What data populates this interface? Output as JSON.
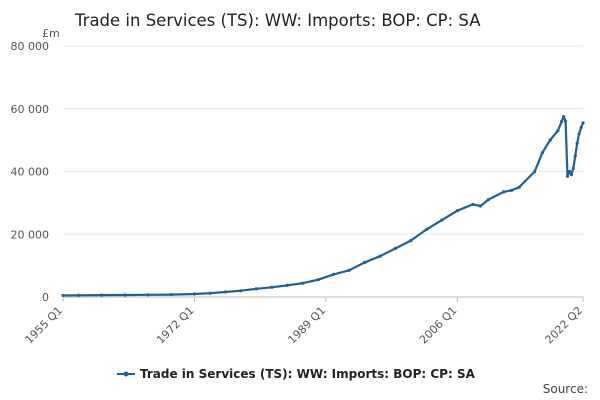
{
  "chart_data": {
    "type": "line",
    "title": "Trade in Services (TS): WW: Imports: BOP: CP: SA",
    "unit_label": "£m",
    "y_ticks": [
      0,
      20000,
      40000,
      60000,
      80000
    ],
    "y_tick_labels": [
      "0",
      "20 000",
      "40 000",
      "60 000",
      "80 000"
    ],
    "ylim": [
      0,
      80000
    ],
    "x_tick_labels": [
      "1955 Q1",
      "1972 Q1",
      "1989 Q1",
      "2006 Q1",
      "2022 Q2"
    ],
    "x_tick_positions": [
      1955.0,
      1972.0,
      1989.0,
      2006.0,
      2022.25
    ],
    "xlim": [
      1955.0,
      2022.25
    ],
    "grid": true,
    "legend": "bottom",
    "series": [
      {
        "name": "Trade in Services (TS): WW: Imports: BOP: CP: SA",
        "color": "#206095",
        "x": [
          1955.0,
          1957.0,
          1960.0,
          1963.0,
          1966.0,
          1969.0,
          1972.0,
          1974.0,
          1976.0,
          1978.0,
          1980.0,
          1982.0,
          1984.0,
          1986.0,
          1988.0,
          1990.0,
          1992.0,
          1994.0,
          1996.0,
          1998.0,
          2000.0,
          2002.0,
          2004.0,
          2006.0,
          2008.0,
          2009.0,
          2010.0,
          2012.0,
          2013.0,
          2014.0,
          2016.0,
          2017.0,
          2018.0,
          2019.0,
          2019.5,
          2019.75,
          2020.0,
          2020.25,
          2020.5,
          2020.75,
          2021.0,
          2021.25,
          2021.5,
          2021.75,
          2022.0,
          2022.25
        ],
        "y": [
          500,
          550,
          600,
          650,
          700,
          780,
          950,
          1200,
          1600,
          2000,
          2600,
          3100,
          3700,
          4400,
          5500,
          7200,
          8500,
          11000,
          13000,
          15500,
          18000,
          21500,
          24500,
          27500,
          29500,
          29000,
          31000,
          33500,
          34000,
          35000,
          40000,
          46000,
          50000,
          53000,
          56000,
          57500,
          56000,
          38500,
          40000,
          39000,
          41000,
          45000,
          49000,
          52000,
          54000,
          55500
        ]
      }
    ]
  },
  "footer": {
    "source_label": "Source:"
  }
}
